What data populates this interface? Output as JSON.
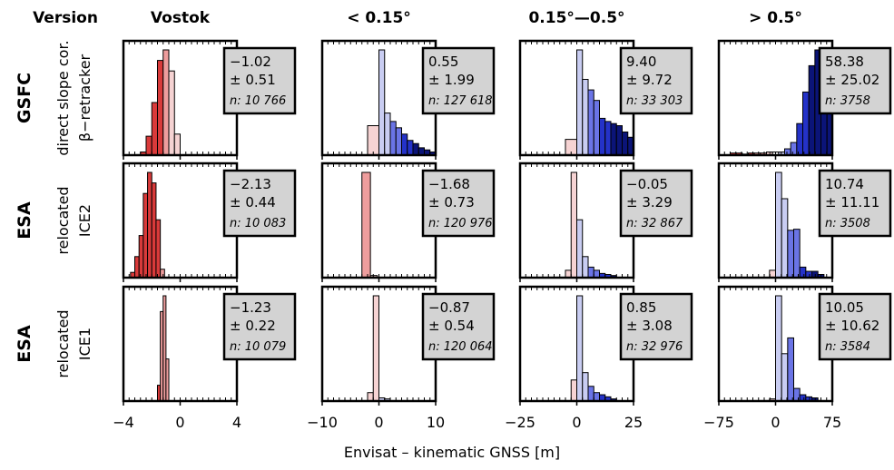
{
  "column_header_label": "Version",
  "colors": {
    "box_fill": "#d3d3d3",
    "neg_light": "#f6d3d3",
    "neg_mid": "#ee9d9d",
    "neg_strong": "#d93a3a",
    "pos_light": "#c9cdf2",
    "pos_mid": "#6a74e6",
    "pos_strong": "#2432c8",
    "pos_dark": "#0b1478"
  },
  "chart_data": {
    "type": "bar",
    "xlabel": "Envisat – kinematic GNSS [m]",
    "columns": [
      {
        "title": "Vostok",
        "xlim": [
          -4,
          4
        ],
        "ticks": [
          -4,
          0,
          4
        ],
        "tick_labels": [
          "−4",
          "0",
          "4"
        ]
      },
      {
        "title": "< 0.15°",
        "xlim": [
          -10,
          10
        ],
        "ticks": [
          -10,
          0,
          10
        ],
        "tick_labels": [
          "−10",
          "0",
          "10"
        ]
      },
      {
        "title": "0.15°—0.5°",
        "xlim": [
          -25,
          25
        ],
        "ticks": [
          -25,
          0,
          25
        ],
        "tick_labels": [
          "−25",
          "0",
          "25"
        ]
      },
      {
        "title": "> 0.5°",
        "xlim": [
          -75,
          75
        ],
        "ticks": [
          -75,
          0,
          75
        ],
        "tick_labels": [
          "−75",
          "0",
          "75"
        ]
      }
    ],
    "rows": [
      {
        "label": "GSFC",
        "sub1": "direct slope cor.",
        "sub2": "β−retracker"
      },
      {
        "label": "ESA",
        "sub1": "relocated",
        "sub2": "ICE2"
      },
      {
        "label": "ESA",
        "sub1": "relocated",
        "sub2": "ICE1"
      }
    ],
    "panels": [
      [
        {
          "mean": "−1.02",
          "sd": "± 0.51",
          "n": "n: 10 766",
          "bin_edges": [
            -2.8,
            -2.4,
            -2.0,
            -1.6,
            -1.2,
            -0.8,
            -0.4,
            0.0
          ],
          "counts": [
            0.03,
            0.18,
            0.5,
            0.9,
            1.0,
            0.8,
            0.2
          ]
        },
        {
          "mean": "0.55",
          "sd": "± 1.99",
          "n": "n: 127 618",
          "bin_edges": [
            -2,
            0,
            1,
            2,
            3,
            4,
            5,
            6,
            7,
            8,
            9,
            10
          ],
          "counts": [
            0.28,
            1.0,
            0.4,
            0.32,
            0.26,
            0.2,
            0.14,
            0.11,
            0.07,
            0.05,
            0.03
          ]
        },
        {
          "mean": "9.40",
          "sd": "± 9.72",
          "n": "n: 33 303",
          "bin_edges": [
            -5,
            0,
            2.5,
            5,
            7.5,
            10,
            12.5,
            15,
            17.5,
            20,
            22.5,
            25
          ],
          "counts": [
            0.15,
            1.0,
            0.72,
            0.62,
            0.52,
            0.35,
            0.32,
            0.3,
            0.28,
            0.22,
            0.17
          ]
        },
        {
          "mean": "58.38",
          "sd": "± 25.02",
          "n": "n: 3758",
          "bin_edges": [
            -60,
            -52,
            -44,
            -36,
            -28,
            -20,
            -12,
            -4,
            4,
            12,
            20,
            28,
            36,
            44,
            52,
            60,
            68,
            75
          ],
          "counts": [
            0.02,
            0.02,
            0.01,
            0.02,
            0.02,
            0.02,
            0.03,
            0.03,
            0.03,
            0.06,
            0.12,
            0.3,
            0.6,
            0.85,
            1.0,
            0.75,
            0.55
          ]
        }
      ],
      [
        {
          "mean": "−2.13",
          "sd": "± 0.44",
          "n": "n: 10 083",
          "bin_edges": [
            -3.5,
            -3.2,
            -2.9,
            -2.6,
            -2.3,
            -2.0,
            -1.7,
            -1.4,
            -1.1
          ],
          "counts": [
            0.05,
            0.2,
            0.4,
            0.8,
            1.0,
            0.9,
            0.55,
            0.08
          ]
        },
        {
          "mean": "−1.68",
          "sd": "± 0.73",
          "n": "n: 120 976",
          "bin_edges": [
            -3,
            -1.5,
            -0.3
          ],
          "counts": [
            1.0,
            0.02
          ]
        },
        {
          "mean": "−0.05",
          "sd": "± 3.29",
          "n": "n: 32 867",
          "bin_edges": [
            -5,
            -2.5,
            0,
            2.5,
            5,
            7.5,
            10,
            12.5,
            15,
            17.5
          ],
          "counts": [
            0.07,
            1.0,
            0.55,
            0.2,
            0.1,
            0.07,
            0.04,
            0.03,
            0.02
          ]
        },
        {
          "mean": "10.74",
          "sd": "± 11.11",
          "n": "n: 3508",
          "bin_edges": [
            -8,
            0,
            8,
            16,
            24,
            32,
            40,
            48,
            56,
            64
          ],
          "counts": [
            0.07,
            1.0,
            0.75,
            0.45,
            0.46,
            0.1,
            0.06,
            0.06,
            0.03
          ]
        }
      ],
      [
        {
          "mean": "−1.23",
          "sd": "± 0.22",
          "n": "n: 10 079",
          "bin_edges": [
            -1.6,
            -1.4,
            -1.2,
            -1.0,
            -0.8
          ],
          "counts": [
            0.15,
            0.85,
            1.0,
            0.4
          ]
        },
        {
          "mean": "−0.87",
          "sd": "± 0.54",
          "n": "n: 120 064",
          "bin_edges": [
            -2,
            -1,
            0,
            1,
            2
          ],
          "counts": [
            0.08,
            1.0,
            0.03,
            0.02
          ]
        },
        {
          "mean": "0.85",
          "sd": "± 3.08",
          "n": "n: 32 976",
          "bin_edges": [
            -2.5,
            0,
            2.5,
            5,
            7.5,
            10,
            12.5,
            15,
            17.5
          ],
          "counts": [
            0.2,
            1.0,
            0.27,
            0.14,
            0.08,
            0.06,
            0.04,
            0.02
          ]
        },
        {
          "mean": "10.05",
          "sd": "± 10.62",
          "n": "n: 3584",
          "bin_edges": [
            -8,
            0,
            8,
            16,
            24,
            32,
            40,
            48,
            56
          ],
          "counts": [
            0.02,
            1.0,
            0.45,
            0.6,
            0.12,
            0.06,
            0.04,
            0.03
          ]
        }
      ]
    ]
  }
}
